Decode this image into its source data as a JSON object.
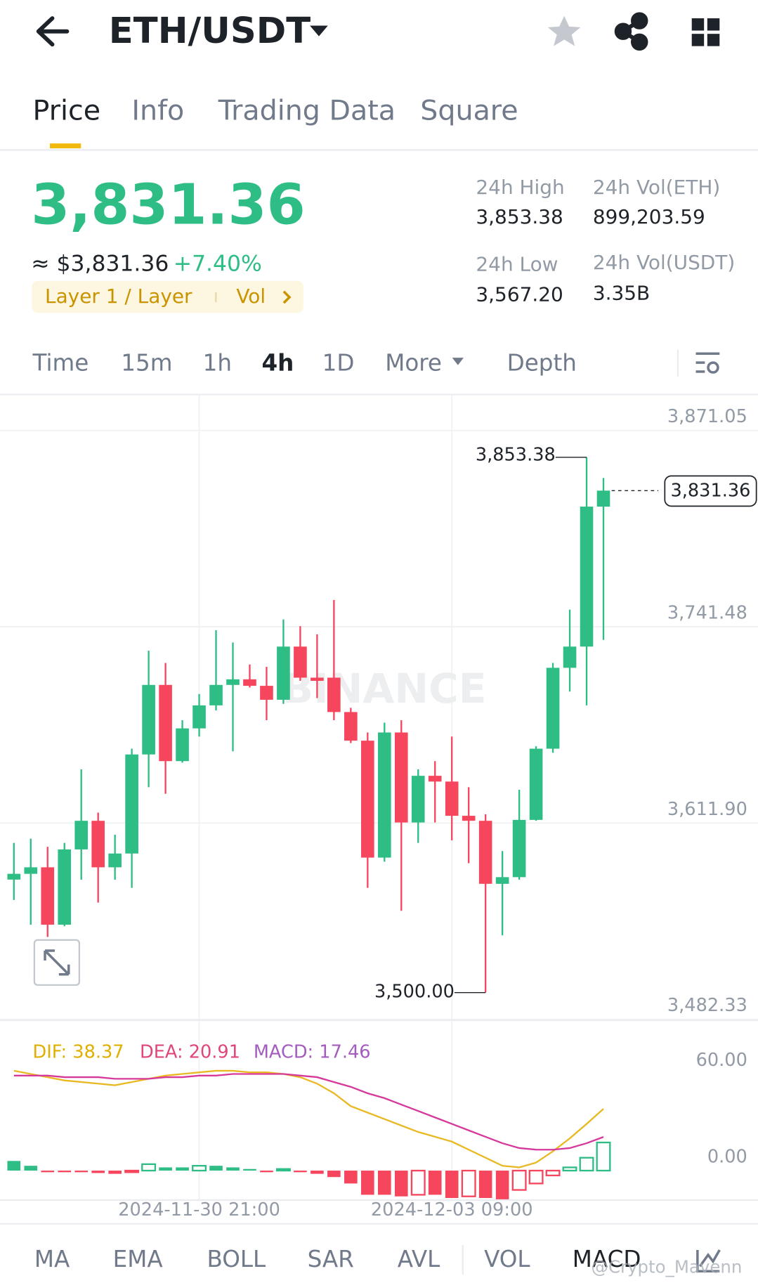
{
  "header": {
    "pair": "ETH/USDT"
  },
  "tabs": [
    "Price",
    "Info",
    "Trading Data",
    "Square"
  ],
  "price": {
    "last": "3,831.36",
    "usd": "≈ $3,831.36",
    "change": "+7.40%",
    "tags": [
      "Layer 1 / Layer",
      "Vol"
    ]
  },
  "stats": [
    {
      "label": "24h High",
      "value": "3,853.38"
    },
    {
      "label": "24h Vol(ETH)",
      "value": "899,203.59"
    },
    {
      "label": "24h Low",
      "value": "3,567.20"
    },
    {
      "label": "24h Vol(USDT)",
      "value": "3.35B"
    }
  ],
  "intervals": [
    "Time",
    "15m",
    "1h",
    "4h",
    "1D",
    "More",
    "Depth"
  ],
  "chart_data": [
    {
      "type": "candlestick",
      "watermark": "BINANCE",
      "up_color": "#2ebd85",
      "down_color": "#f6465d",
      "ylim": [
        3482.33,
        3894.27
      ],
      "yticks": [
        {
          "value": 3871.05,
          "label": "3,871.05"
        },
        {
          "value": 3741.48,
          "label": "3,741.48"
        },
        {
          "value": 3611.9,
          "label": "3,611.90"
        },
        {
          "value": 3482.33,
          "label": "3,482.33"
        }
      ],
      "grid": true,
      "open": [
        3574.6,
        3578.4,
        3582.7,
        3544.8,
        3594.5,
        3613.4,
        3582.7,
        3591.8,
        3657.2,
        3703.1,
        3652.8,
        3674.4,
        3689.6,
        3703.1,
        3706.8,
        3702.5,
        3693.3,
        3728.4,
        3707.9,
        3707.9,
        3685.2,
        3666.3,
        3589.1,
        3671.7,
        3612.3,
        3643.1,
        3639.3,
        3616.7,
        3613.4,
        3571.8,
        3576.2,
        3614.0,
        3661.0,
        3714.4,
        3728.4,
        3820.8
      ],
      "high": [
        3598.8,
        3601.6,
        3596.2,
        3598.8,
        3647.4,
        3618.8,
        3604.2,
        3661.0,
        3725.7,
        3717.6,
        3679.8,
        3697.1,
        3739.2,
        3731.1,
        3716.6,
        3715.0,
        3746.3,
        3741.9,
        3736.5,
        3759.2,
        3688.0,
        3671.7,
        3678.2,
        3679.8,
        3647.4,
        3652.8,
        3669.0,
        3635.6,
        3617.7,
        3593.4,
        3633.9,
        3662.6,
        3717.6,
        3752.8,
        3853.38,
        3839.7
      ],
      "low": [
        3561.1,
        3544.8,
        3536.7,
        3543.8,
        3574.5,
        3559.4,
        3574.5,
        3569.1,
        3635.6,
        3631.2,
        3651.8,
        3669.0,
        3686.3,
        3659.3,
        3701.4,
        3679.8,
        3690.6,
        3705.8,
        3694.4,
        3679.8,
        3664.7,
        3569.1,
        3586.4,
        3554.0,
        3598.8,
        3612.3,
        3600.5,
        3585.4,
        3500.0,
        3537.8,
        3574.5,
        3613.4,
        3658.3,
        3698.7,
        3689.6,
        3732.8
      ],
      "close": [
        3578.4,
        3582.7,
        3544.8,
        3594.5,
        3613.4,
        3582.7,
        3591.8,
        3657.2,
        3703.1,
        3652.8,
        3674.4,
        3689.6,
        3703.1,
        3706.8,
        3702.5,
        3693.3,
        3728.4,
        3707.9,
        3705.8,
        3685.2,
        3666.3,
        3589.1,
        3671.7,
        3612.3,
        3643.1,
        3639.3,
        3616.7,
        3613.4,
        3571.8,
        3576.2,
        3614.0,
        3661.0,
        3714.4,
        3728.4,
        3820.8,
        3831.36
      ],
      "high_label": "3,853.38",
      "low_label": "3,500.00",
      "last_label": "3,831.36"
    },
    {
      "type": "macd",
      "categories": [
        null,
        null,
        null,
        null,
        null,
        null,
        null,
        null,
        null,
        null,
        null,
        "2024-11-30 21:00",
        null,
        null,
        null,
        null,
        null,
        null,
        null,
        null,
        null,
        null,
        null,
        null,
        null,
        null,
        "2024-12-03 09:00",
        null,
        null,
        null,
        null,
        null,
        null,
        null,
        null,
        null
      ],
      "ylim": [
        -18.3,
        92.9
      ],
      "yticks": [
        {
          "value": 60,
          "label": "60.00"
        },
        {
          "value": 0,
          "label": "0.00"
        }
      ],
      "grid": false,
      "legend": [
        "DIF: 38.37",
        "DEA: 20.91",
        "MACD: 17.46"
      ],
      "legend_colors": [
        "#e0b000",
        "#e0457b",
        "#a45dbd"
      ],
      "series": [
        {
          "name": "DIF",
          "color": "#e8b923",
          "values": [
            62,
            60,
            58,
            56,
            55,
            54,
            53,
            55,
            57,
            59,
            60,
            61,
            62,
            62,
            61,
            61,
            60,
            58,
            54,
            48,
            40,
            36,
            32,
            28,
            24,
            21,
            18,
            13,
            8,
            3,
            2,
            5,
            12,
            20,
            29,
            38.37
          ]
        },
        {
          "name": "DEA",
          "color": "#d6399a",
          "values": [
            59,
            59,
            59,
            58,
            58,
            58,
            57,
            57,
            57,
            58,
            58,
            59,
            59,
            60,
            60,
            60,
            60,
            59,
            58,
            55,
            52,
            48,
            45,
            41,
            37,
            33,
            29,
            25,
            21,
            17,
            14,
            13,
            13,
            14,
            17,
            20.91
          ]
        },
        {
          "name": "MACD",
          "type": "histogram",
          "up_color": "#2ebd85",
          "down_color": "#f6465d",
          "values": [
            6,
            3,
            -1,
            -1,
            -1,
            -1.5,
            -2,
            -1,
            4,
            2,
            2,
            3,
            3,
            2,
            1,
            -1,
            1,
            -1,
            -2,
            -4,
            -8,
            -15,
            -15,
            -16,
            -15,
            -15,
            -17,
            -16,
            -17,
            -18,
            -12,
            -8,
            -3,
            2,
            8,
            17.46
          ]
        }
      ]
    }
  ],
  "indicators": [
    "MA",
    "EMA",
    "BOLL",
    "SAR",
    "AVL",
    "VOL",
    "MACD"
  ],
  "watermark": "@Crypto_Mavenn"
}
